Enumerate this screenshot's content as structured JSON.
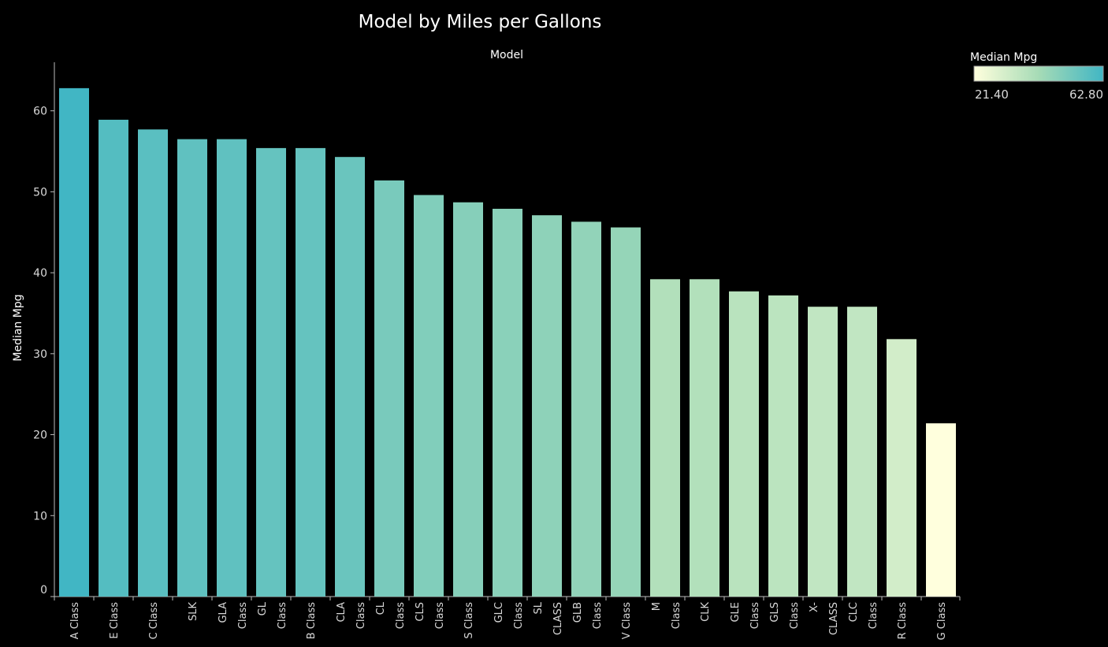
{
  "chart_data": {
    "type": "bar",
    "title": "Model by Miles per Gallons",
    "xlabel": "Model",
    "ylabel": "Median Mpg",
    "ylim": [
      0,
      66
    ],
    "yticks": [
      0,
      10,
      20,
      30,
      40,
      50,
      60
    ],
    "grid": false,
    "categories": [
      [
        "A Class"
      ],
      [
        "E Class"
      ],
      [
        "C Class"
      ],
      [
        "SLK"
      ],
      [
        "GLA",
        "Class"
      ],
      [
        "GL",
        "Class"
      ],
      [
        "B Class"
      ],
      [
        "CLA",
        "Class"
      ],
      [
        "CL",
        "Class"
      ],
      [
        "CLS",
        "Class"
      ],
      [
        "S Class"
      ],
      [
        "GLC",
        "Class"
      ],
      [
        "SL",
        "CLASS"
      ],
      [
        "GLB",
        "Class"
      ],
      [
        "V Class"
      ],
      [
        "M",
        "Class"
      ],
      [
        "CLK"
      ],
      [
        "GLE",
        "Class"
      ],
      [
        "GLS",
        "Class"
      ],
      [
        "X-",
        "CLASS"
      ],
      [
        "CLC",
        "Class"
      ],
      [
        "R Class"
      ],
      [
        "G Class"
      ]
    ],
    "values": [
      62.8,
      58.9,
      57.7,
      56.5,
      56.5,
      55.4,
      55.4,
      54.3,
      51.4,
      49.6,
      48.7,
      47.9,
      47.1,
      46.3,
      45.6,
      39.2,
      39.2,
      37.7,
      37.2,
      35.8,
      35.8,
      31.8,
      21.4
    ],
    "legend": {
      "title": "Median Mpg",
      "placement": "top-right",
      "min_label": "21.40",
      "max_label": "62.80",
      "min": 21.4,
      "max": 62.8,
      "color_low": "#ffffdd",
      "color_mid": "#a6dbb6",
      "color_high": "#41b6c4"
    }
  }
}
